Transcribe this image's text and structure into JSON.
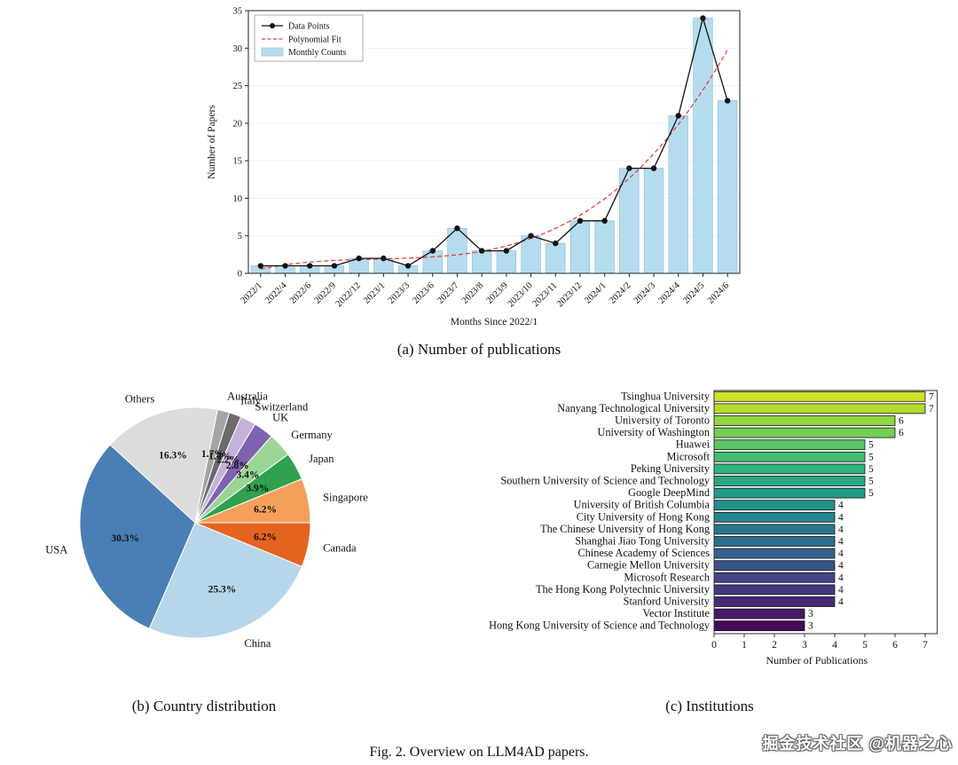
{
  "captions": {
    "a": "(a) Number of publications",
    "b": "(b) Country distribution",
    "c": "(c) Institutions",
    "figure": "Fig. 2.  Overview on LLM4AD papers."
  },
  "watermark": {
    "text": "掘金技术社区 @机器之心"
  },
  "chart_data": [
    {
      "id": "publications-over-time",
      "type": "bar",
      "title": "",
      "xlabel": "Months Since 2022/1",
      "ylabel": "Number of Papers",
      "ylim": [
        0,
        35
      ],
      "yticks": [
        0,
        5,
        10,
        15,
        20,
        25,
        30,
        35
      ],
      "grid": "horizontal-faint",
      "legend_position": "upper-left",
      "legend": [
        "Data Points",
        "Polynomial Fit",
        "Monthly Counts"
      ],
      "categories": [
        "2022/1",
        "2022/4",
        "2022/6",
        "2022/9",
        "2022/12",
        "2023/1",
        "2023/3",
        "2023/6",
        "2023/7",
        "2023/8",
        "2023/9",
        "2023/10",
        "2023/11",
        "2023/12",
        "2024/1",
        "2024/2",
        "2024/3",
        "2024/4",
        "2024/5",
        "2024/6"
      ],
      "values": [
        1,
        1,
        1,
        1,
        2,
        2,
        1,
        3,
        6,
        3,
        3,
        5,
        4,
        7,
        7,
        14,
        14,
        21,
        34,
        23
      ],
      "colors": {
        "bar": "#b5dcee",
        "bar_edge": "#8fc3da",
        "line": "#111111",
        "fit": "#e04545"
      }
    },
    {
      "id": "country-distribution",
      "type": "pie",
      "title": "",
      "start_angle_deg": 0,
      "direction": "counterclockwise",
      "label_color": "#1a1a8c",
      "pct_color": "#8b2222",
      "slices": [
        {
          "label": "Singapore",
          "value": 6.2,
          "color": "#f5a05a"
        },
        {
          "label": "Japan",
          "value": 3.9,
          "color": "#2fa14f"
        },
        {
          "label": "Germany",
          "value": 3.4,
          "color": "#9ad594"
        },
        {
          "label": "UK",
          "value": 2.8,
          "color": "#7d63b0"
        },
        {
          "label": "Switzerland",
          "value": 2.2,
          "color": "#c4b2d8"
        },
        {
          "label": "Italy",
          "value": 1.7,
          "color": "#6b6b6b"
        },
        {
          "label": "Australia",
          "value": 1.7,
          "color": "#a5a5a5"
        },
        {
          "label": "Others",
          "value": 16.3,
          "color": "#dcdcdc"
        },
        {
          "label": "USA",
          "value": 30.3,
          "color": "#4a7fb5"
        },
        {
          "label": "China",
          "value": 25.3,
          "color": "#b7d6ea"
        },
        {
          "label": "Canada",
          "value": 6.2,
          "color": "#e2641e"
        }
      ]
    },
    {
      "id": "institutions",
      "type": "bar",
      "orientation": "horizontal",
      "title": "",
      "xlabel": "Number of Publications",
      "xlim": [
        0,
        7.4
      ],
      "xticks": [
        0,
        1,
        2,
        3,
        4,
        5,
        6,
        7
      ],
      "colormap": "viridis-reversed",
      "categories": [
        "Tsinghua University",
        "Nanyang Technological University",
        "University of Toronto",
        "University of Washington",
        "Huawei",
        "Microsoft",
        "Peking University",
        "Southern University of Science and Technology",
        "Google DeepMind",
        "University of British Columbia",
        "City University of Hong Kong",
        "The Chinese University of Hong Kong",
        "Shanghai Jiao Tong University",
        "Chinese Academy of Sciences",
        "Carnegie Mellon University",
        "Microsoft Research",
        "The Hong Kong Polytechnic University",
        "Stanford University",
        "Vector Institute",
        "Hong Kong University of Science and Technology"
      ],
      "values": [
        7,
        7,
        6,
        6,
        5,
        5,
        5,
        5,
        5,
        4,
        4,
        4,
        4,
        4,
        4,
        4,
        4,
        4,
        3,
        3
      ]
    }
  ]
}
